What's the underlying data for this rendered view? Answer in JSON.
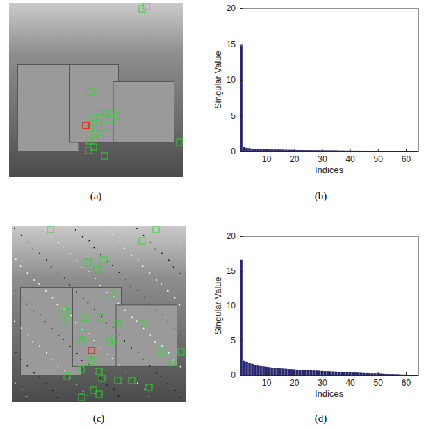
{
  "images": [
    {
      "label": "(a)"
    },
    {
      "label": "(c)"
    }
  ],
  "chart_data": [
    {
      "type": "bar",
      "panel_label": "(b)",
      "x_label": "Indices",
      "y_label": "Singular Value",
      "color": "#27277a",
      "x": [
        1,
        2,
        3,
        4,
        5,
        6,
        7,
        8,
        9,
        10,
        11,
        12,
        13,
        14,
        15,
        16,
        17,
        18,
        19,
        20,
        21,
        22,
        23,
        24,
        25,
        26,
        27,
        28,
        29,
        30,
        31,
        32,
        33,
        34,
        35,
        36,
        37,
        38,
        39,
        40,
        41,
        42,
        43,
        44,
        45,
        46,
        47,
        48,
        49,
        50,
        51,
        52,
        53,
        54,
        55,
        56,
        57,
        58,
        59,
        60,
        61,
        62,
        63,
        64
      ],
      "values": [
        14.8,
        0.62,
        0.48,
        0.42,
        0.38,
        0.35,
        0.33,
        0.31,
        0.29,
        0.28,
        0.27,
        0.26,
        0.25,
        0.24,
        0.23,
        0.22,
        0.21,
        0.2,
        0.2,
        0.19,
        0.18,
        0.18,
        0.17,
        0.17,
        0.16,
        0.16,
        0.15,
        0.15,
        0.14,
        0.14,
        0.13,
        0.13,
        0.12,
        0.12,
        0.12,
        0.11,
        0.11,
        0.1,
        0.1,
        0.1,
        0.09,
        0.09,
        0.09,
        0.08,
        0.08,
        0.08,
        0.07,
        0.07,
        0.07,
        0.06,
        0.06,
        0.06,
        0.05,
        0.05,
        0.05,
        0.04,
        0.04,
        0.04,
        0.03,
        0.03,
        0.03,
        0.02,
        0.02,
        0.01
      ],
      "xlim": [
        0.5,
        64.5
      ],
      "xticks": [
        10,
        20,
        30,
        40,
        50,
        60
      ],
      "ylim": [
        0,
        20
      ],
      "yticks": [
        0,
        5,
        10,
        15,
        20
      ],
      "grid": false
    },
    {
      "type": "bar",
      "panel_label": "(d)",
      "x_label": "Indices",
      "y_label": "Singular Value",
      "color": "#27277a",
      "x": [
        1,
        2,
        3,
        4,
        5,
        6,
        7,
        8,
        9,
        10,
        11,
        12,
        13,
        14,
        15,
        16,
        17,
        18,
        19,
        20,
        21,
        22,
        23,
        24,
        25,
        26,
        27,
        28,
        29,
        30,
        31,
        32,
        33,
        34,
        35,
        36,
        37,
        38,
        39,
        40,
        41,
        42,
        43,
        44,
        45,
        46,
        47,
        48,
        49,
        50,
        51,
        52,
        53,
        54,
        55,
        56,
        57,
        58,
        59,
        60,
        61,
        62,
        63,
        64
      ],
      "values": [
        16.6,
        2.1,
        1.9,
        1.75,
        1.6,
        1.45,
        1.35,
        1.3,
        1.25,
        1.2,
        1.15,
        1.1,
        1.05,
        1.0,
        0.97,
        0.94,
        0.91,
        0.88,
        0.85,
        0.82,
        0.79,
        0.76,
        0.74,
        0.72,
        0.7,
        0.68,
        0.66,
        0.64,
        0.62,
        0.6,
        0.58,
        0.56,
        0.54,
        0.52,
        0.5,
        0.48,
        0.46,
        0.44,
        0.42,
        0.4,
        0.38,
        0.36,
        0.34,
        0.32,
        0.3,
        0.29,
        0.28,
        0.26,
        0.25,
        0.23,
        0.22,
        0.2,
        0.19,
        0.17,
        0.16,
        0.14,
        0.13,
        0.11,
        0.1,
        0.09,
        0.07,
        0.06,
        0.05,
        0.03
      ],
      "xlim": [
        0.5,
        64.5
      ],
      "xticks": [
        10,
        20,
        30,
        40,
        50,
        60
      ],
      "ylim": [
        0,
        20
      ],
      "yticks": [
        0,
        5,
        10,
        15,
        20
      ],
      "grid": false
    }
  ]
}
